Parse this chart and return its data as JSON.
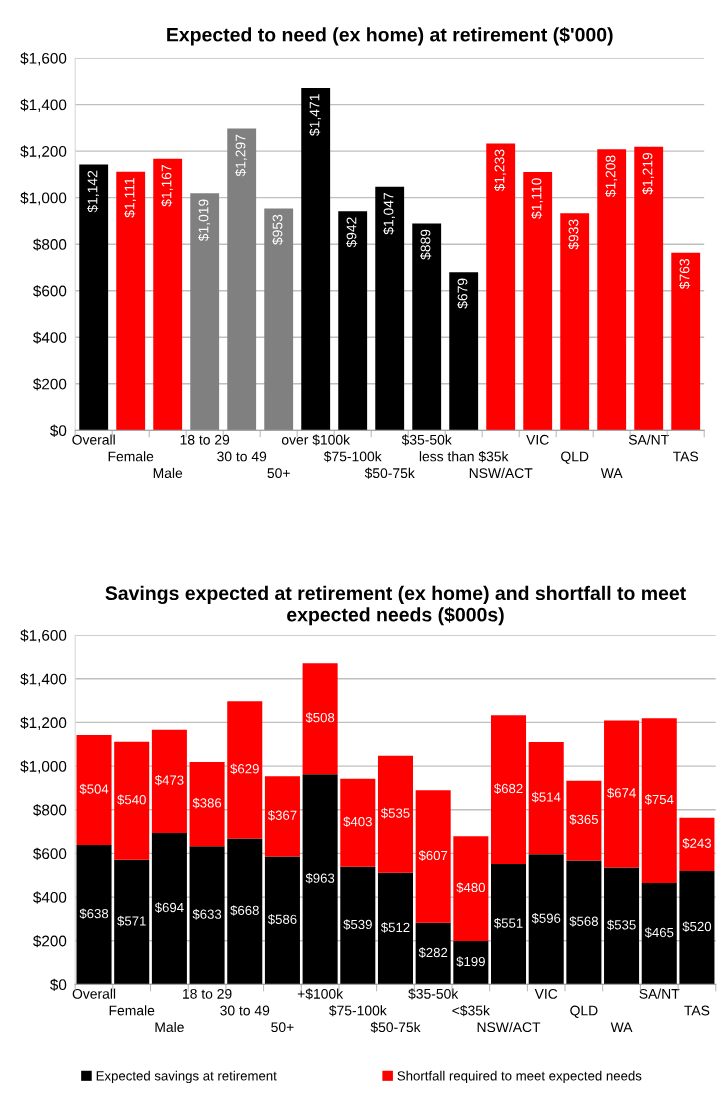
{
  "chart_data": [
    {
      "type": "bar",
      "title": "Expected to need (ex home) at retirement ($'000)",
      "categories": [
        "Overall",
        "Female",
        "Male",
        "18 to 29",
        "30 to 49",
        "50+",
        "over $100k",
        "$75-100k",
        "$50-75k",
        "$35-50k",
        "less than $35k",
        "NSW/ACT",
        "VIC",
        "QLD",
        "WA",
        "SA/NT",
        "TAS"
      ],
      "values": [
        1142,
        1111,
        1167,
        1019,
        1297,
        953,
        1471,
        942,
        1047,
        889,
        679,
        1233,
        1110,
        933,
        1208,
        1219,
        763
      ],
      "colors": [
        "#000000",
        "#ff0000",
        "#ff0000",
        "#808080",
        "#808080",
        "#808080",
        "#000000",
        "#000000",
        "#000000",
        "#000000",
        "#000000",
        "#ff0000",
        "#ff0000",
        "#ff0000",
        "#ff0000",
        "#ff0000",
        "#ff0000"
      ],
      "value_labels": [
        "$1,142",
        "$1,111",
        "$1,167",
        "$1,019",
        "$1,297",
        "$953",
        "$1,471",
        "$942",
        "$1,047",
        "$889",
        "$679",
        "$1,233",
        "$1,110",
        "$933",
        "$1,208",
        "$1,219",
        "$763"
      ],
      "ylim": [
        0,
        1600
      ],
      "yticks": [
        {
          "value": 0,
          "label": "$0"
        },
        {
          "value": 200,
          "label": "$200"
        },
        {
          "value": 400,
          "label": "$400"
        },
        {
          "value": 600,
          "label": "$600"
        },
        {
          "value": 800,
          "label": "$800"
        },
        {
          "value": 1000,
          "label": "$1,000"
        },
        {
          "value": 1200,
          "label": "$1,200"
        },
        {
          "value": 1400,
          "label": "$1,400"
        },
        {
          "value": 1600,
          "label": "$1,600"
        }
      ],
      "grid": "y"
    },
    {
      "type": "bar",
      "stacked": true,
      "title": "Savings expected at retirement (ex home) and shortfall to meet expected needs ($000s)",
      "categories": [
        "Overall",
        "Female",
        "Male",
        "18 to 29",
        "30 to 49",
        "50+",
        "+$100k",
        "$75-100k",
        "$50-75k",
        "$35-50k",
        "<$35k",
        "NSW/ACT",
        "VIC",
        "QLD",
        "WA",
        "SA/NT",
        "TAS"
      ],
      "series": [
        {
          "name": "Expected savings at retirement",
          "color": "#000000",
          "values": [
            638,
            571,
            694,
            633,
            668,
            586,
            963,
            539,
            512,
            282,
            199,
            551,
            596,
            568,
            535,
            465,
            520
          ],
          "value_labels": [
            "$638",
            "$571",
            "$694",
            "$633",
            "$668",
            "$586",
            "$963",
            "$539",
            "$512",
            "$282",
            "$199",
            "$551",
            "$596",
            "$568",
            "$535",
            "$465",
            "$520"
          ]
        },
        {
          "name": "Shortfall required to meet expected needs",
          "color": "#ff0000",
          "values": [
            504,
            540,
            473,
            386,
            629,
            367,
            508,
            403,
            535,
            607,
            480,
            682,
            514,
            365,
            674,
            754,
            243
          ],
          "value_labels": [
            "$504",
            "$540",
            "$473",
            "$386",
            "$629",
            "$367",
            "$508",
            "$403",
            "$535",
            "$607",
            "$480",
            "$682",
            "$514",
            "$365",
            "$674",
            "$754",
            "$243"
          ]
        }
      ],
      "ylim": [
        0,
        1600
      ],
      "yticks": [
        {
          "value": 0,
          "label": "$0"
        },
        {
          "value": 200,
          "label": "$200"
        },
        {
          "value": 400,
          "label": "$400"
        },
        {
          "value": 600,
          "label": "$600"
        },
        {
          "value": 800,
          "label": "$800"
        },
        {
          "value": 1000,
          "label": "$1,000"
        },
        {
          "value": 1200,
          "label": "$1,200"
        },
        {
          "value": 1400,
          "label": "$1,400"
        },
        {
          "value": 1600,
          "label": "$1,600"
        }
      ],
      "grid": "y",
      "legend": "bottom"
    }
  ]
}
